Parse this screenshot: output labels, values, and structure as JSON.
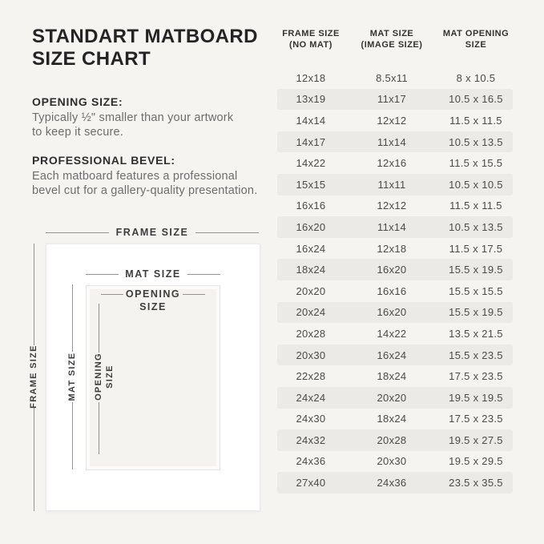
{
  "header": {
    "title_lines": [
      "STANDART MATBOARD",
      "SIZE CHART"
    ]
  },
  "info_sections": [
    {
      "heading": "OPENING SIZE:",
      "body_lines": [
        "Typically ½\" smaller than your artwork",
        "to keep it secure."
      ]
    },
    {
      "heading": "PROFESSIONAL BEVEL:",
      "body_lines": [
        "Each matboard features a professional",
        "bevel cut for a gallery-quality presentation."
      ]
    }
  ],
  "diagram": {
    "frame_label": "FRAME SIZE",
    "mat_label": "MAT SIZE",
    "opening_label_line1": "OPENING",
    "opening_label_line2": "SIZE",
    "frame_label_vertical": "FRAME SIZE",
    "mat_label_vertical": "MAT SIZE",
    "opening_label_vertical_line1": "OPENING",
    "opening_label_vertical_line2": "SIZE"
  },
  "chart_data": {
    "type": "table",
    "title": "STANDART MATBOARD SIZE CHART",
    "columns": [
      [
        "FRAME SIZE",
        "(NO MAT)"
      ],
      [
        "MAT SIZE",
        "(IMAGE SIZE)"
      ],
      [
        "MAT OPENING",
        "SIZE"
      ]
    ],
    "rows": [
      [
        "12x18",
        "8.5x11",
        "8 x 10.5"
      ],
      [
        "13x19",
        "11x17",
        "10.5 x 16.5"
      ],
      [
        "14x14",
        "12x12",
        "11.5 x 11.5"
      ],
      [
        "14x17",
        "11x14",
        "10.5 x 13.5"
      ],
      [
        "14x22",
        "12x16",
        "11.5 x 15.5"
      ],
      [
        "15x15",
        "11x11",
        "10.5 x 10.5"
      ],
      [
        "16x16",
        "12x12",
        "11.5 x 11.5"
      ],
      [
        "16x20",
        "11x14",
        "10.5 x 13.5"
      ],
      [
        "16x24",
        "12x18",
        "11.5 x 17.5"
      ],
      [
        "18x24",
        "16x20",
        "15.5 x 19.5"
      ],
      [
        "20x20",
        "16x16",
        "15.5 x 15.5"
      ],
      [
        "20x24",
        "16x20",
        "15.5 x 19.5"
      ],
      [
        "20x28",
        "14x22",
        "13.5 x 21.5"
      ],
      [
        "20x30",
        "16x24",
        "15.5 x 23.5"
      ],
      [
        "22x28",
        "18x24",
        "17.5 x 23.5"
      ],
      [
        "24x24",
        "20x20",
        "19.5 x 19.5"
      ],
      [
        "24x30",
        "18x24",
        "17.5 x 23.5"
      ],
      [
        "24x32",
        "20x28",
        "19.5 x 27.5"
      ],
      [
        "24x36",
        "20x30",
        "19.5 x 29.5"
      ],
      [
        "27x40",
        "24x36",
        "23.5 x 35.5"
      ]
    ],
    "layout": {
      "stripe_even_rows": true,
      "legend": false,
      "grid": false
    }
  },
  "colors": {
    "background": "#f5f4f1",
    "stripe": "#eceae7",
    "mat_white": "#ffffff",
    "line": "#96938f",
    "title_text": "#242424",
    "body_text": "#6d6d6d",
    "cell_text": "#4a4a4a"
  }
}
